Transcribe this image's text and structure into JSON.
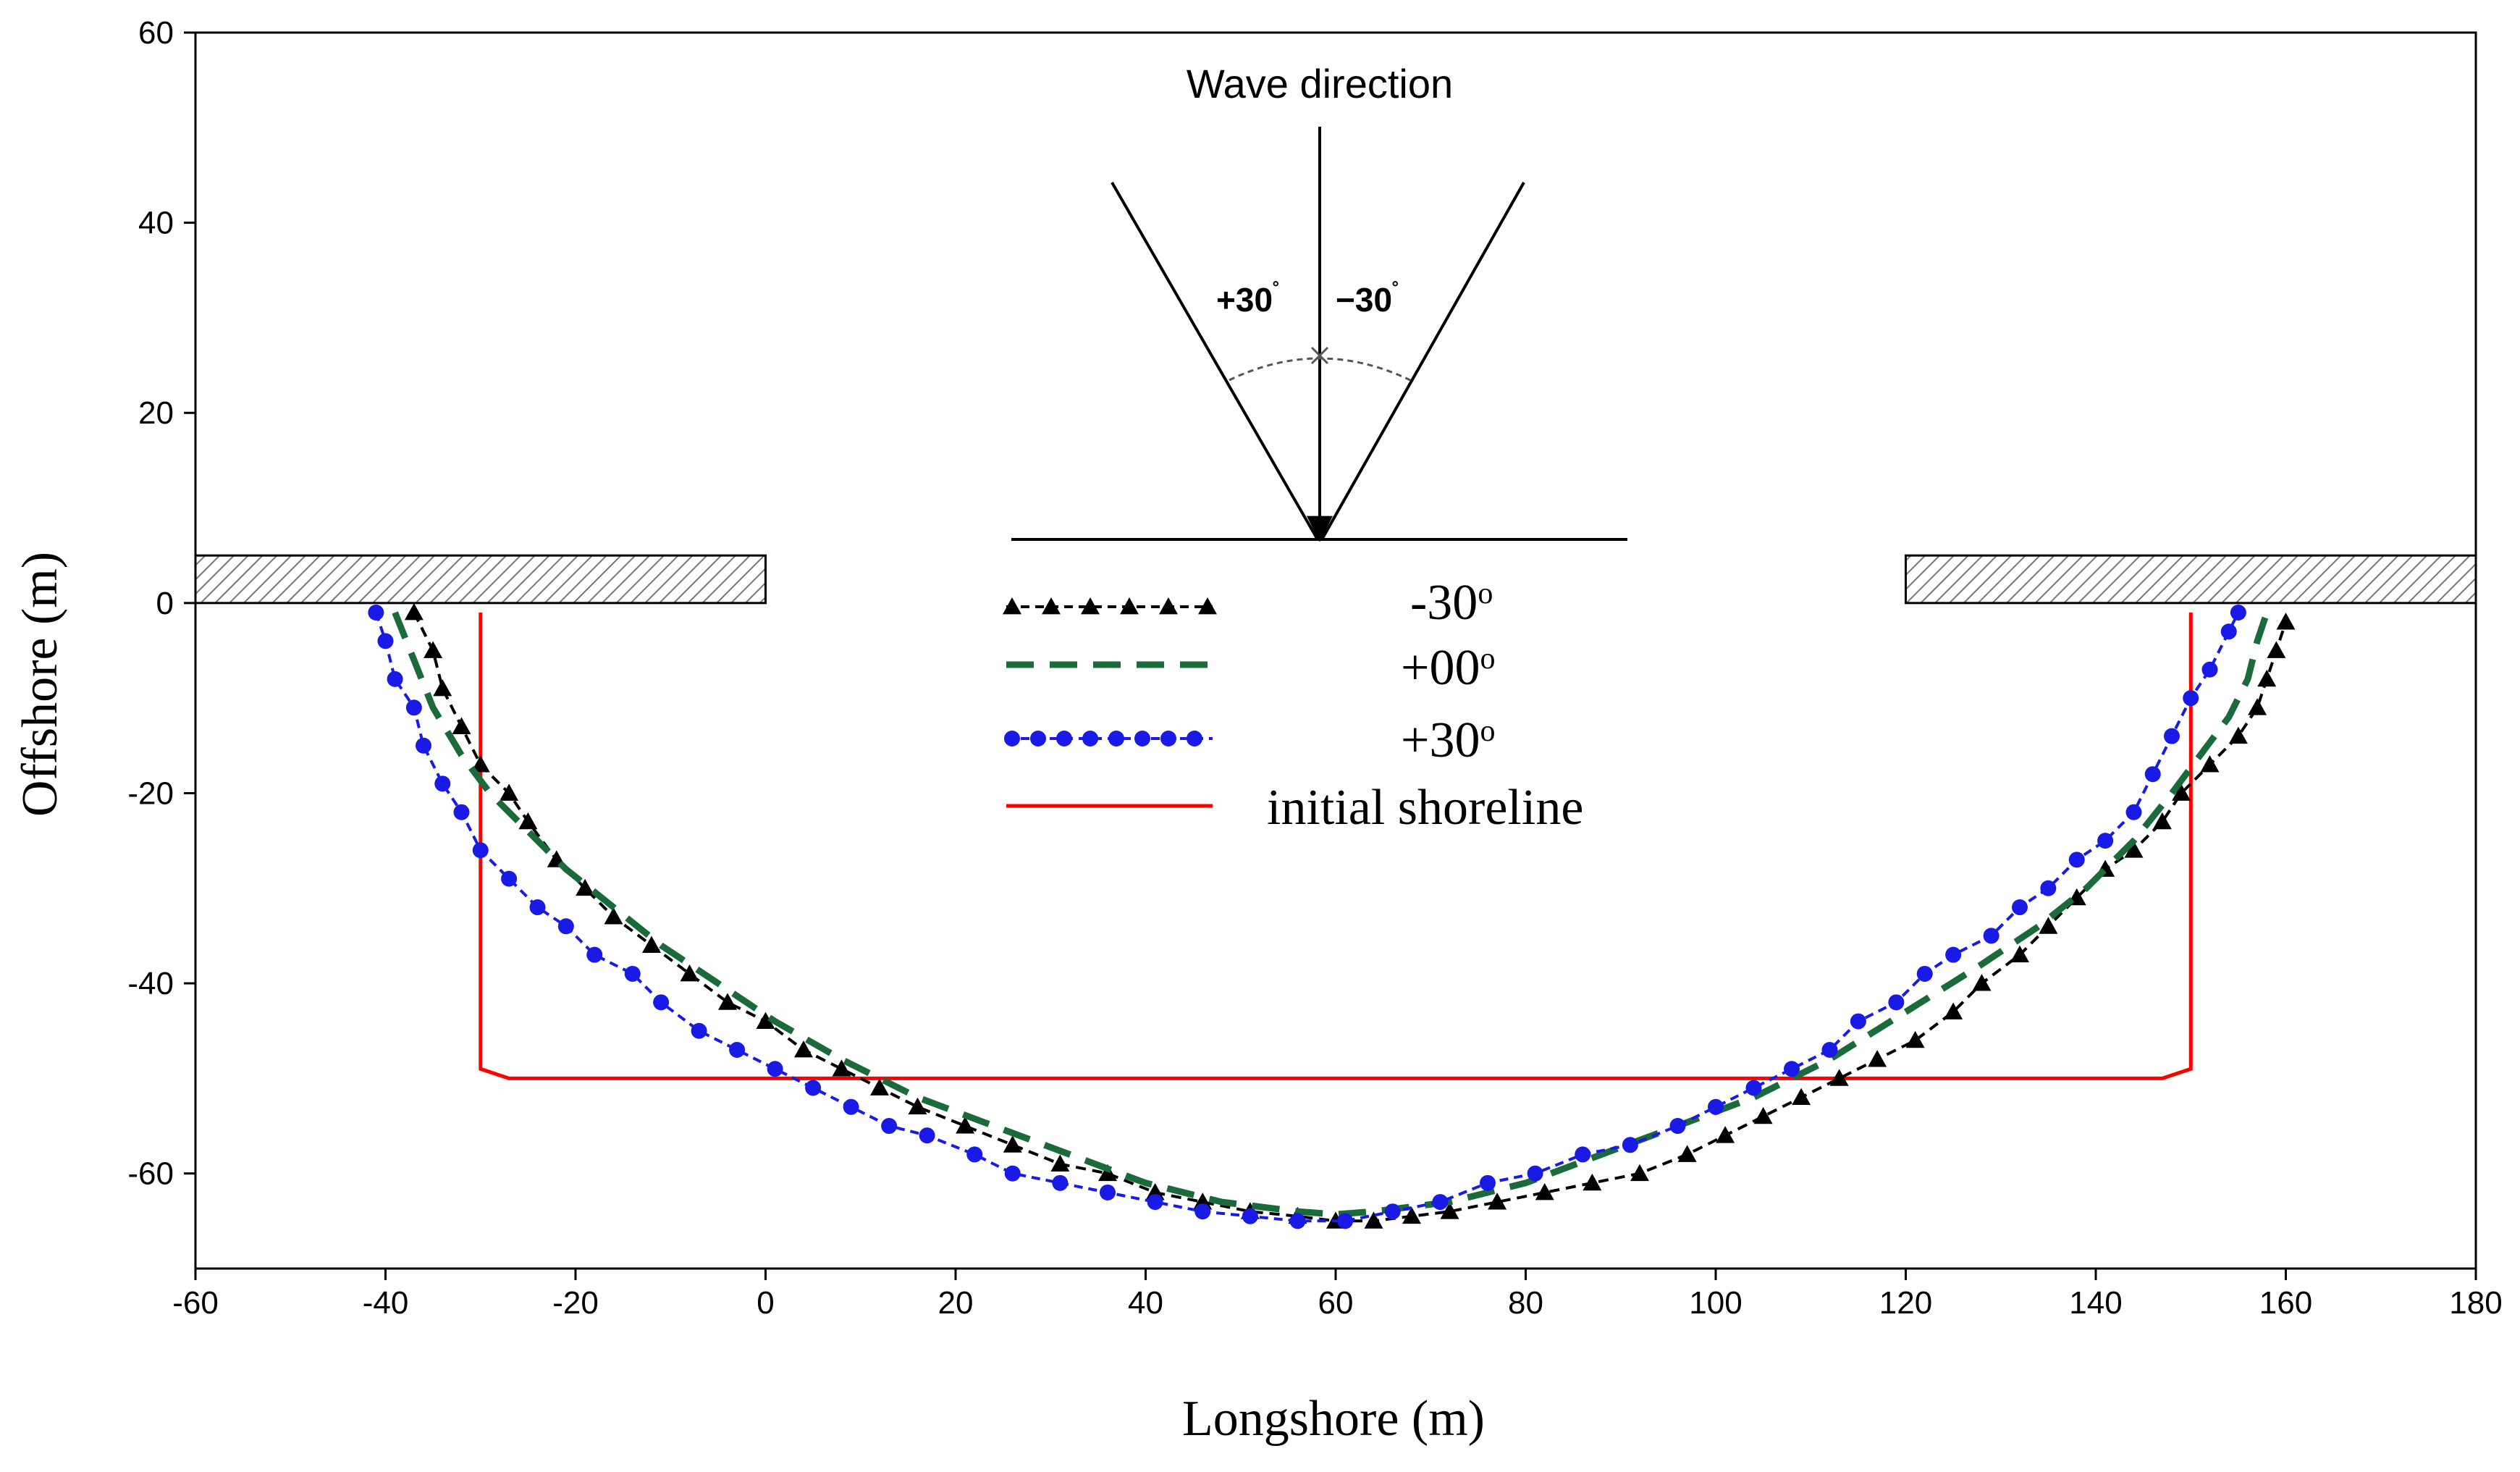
{
  "chart_data": {
    "type": "line",
    "title": "",
    "xlabel": "Longshore (m)",
    "ylabel": "Offshore (m)",
    "xlim": [
      -60,
      180
    ],
    "ylim": [
      -70,
      60
    ],
    "x_ticks": [
      -60,
      -40,
      -20,
      0,
      20,
      40,
      60,
      80,
      100,
      120,
      140,
      160,
      180
    ],
    "y_ticks": [
      -60,
      -40,
      -20,
      0,
      20,
      40,
      60
    ],
    "grid": false,
    "legend_placement": "center",
    "series": [
      {
        "name": "-30",
        "legend_label": "-30",
        "legend_sup": "o",
        "color": "#000000",
        "style": "dashed-triangle",
        "points": [
          [
            -37,
            -1
          ],
          [
            -35,
            -5
          ],
          [
            -34,
            -9
          ],
          [
            -32,
            -13
          ],
          [
            -30,
            -17
          ],
          [
            -27,
            -20
          ],
          [
            -25,
            -23
          ],
          [
            -22,
            -27
          ],
          [
            -19,
            -30
          ],
          [
            -16,
            -33
          ],
          [
            -12,
            -36
          ],
          [
            -8,
            -39
          ],
          [
            -4,
            -42
          ],
          [
            0,
            -44
          ],
          [
            4,
            -47
          ],
          [
            8,
            -49
          ],
          [
            12,
            -51
          ],
          [
            16,
            -53
          ],
          [
            21,
            -55
          ],
          [
            26,
            -57
          ],
          [
            31,
            -59
          ],
          [
            36,
            -60
          ],
          [
            41,
            -62
          ],
          [
            46,
            -63
          ],
          [
            51,
            -64
          ],
          [
            56,
            -64.5
          ],
          [
            60,
            -65
          ],
          [
            64,
            -65
          ],
          [
            68,
            -64.5
          ],
          [
            72,
            -64
          ],
          [
            77,
            -63
          ],
          [
            82,
            -62
          ],
          [
            87,
            -61
          ],
          [
            92,
            -60
          ],
          [
            97,
            -58
          ],
          [
            101,
            -56
          ],
          [
            105,
            -54
          ],
          [
            109,
            -52
          ],
          [
            113,
            -50
          ],
          [
            117,
            -48
          ],
          [
            121,
            -46
          ],
          [
            125,
            -43
          ],
          [
            128,
            -40
          ],
          [
            132,
            -37
          ],
          [
            135,
            -34
          ],
          [
            138,
            -31
          ],
          [
            141,
            -28
          ],
          [
            144,
            -26
          ],
          [
            147,
            -23
          ],
          [
            149,
            -20
          ],
          [
            152,
            -17
          ],
          [
            155,
            -14
          ],
          [
            157,
            -11
          ],
          [
            158,
            -8
          ],
          [
            159,
            -5
          ],
          [
            160,
            -2
          ]
        ]
      },
      {
        "name": "+00",
        "legend_label": "+00",
        "legend_sup": "o",
        "color": "#1b6b3a",
        "style": "dashed",
        "points": [
          [
            -39,
            -1
          ],
          [
            -37,
            -6
          ],
          [
            -35,
            -11
          ],
          [
            -32,
            -16
          ],
          [
            -29,
            -20
          ],
          [
            -25,
            -24
          ],
          [
            -21,
            -28
          ],
          [
            -16,
            -32
          ],
          [
            -11,
            -36
          ],
          [
            -5,
            -40
          ],
          [
            1,
            -44
          ],
          [
            8,
            -48
          ],
          [
            16,
            -52
          ],
          [
            24,
            -55
          ],
          [
            32,
            -58
          ],
          [
            40,
            -61
          ],
          [
            48,
            -63
          ],
          [
            56,
            -64
          ],
          [
            60,
            -64.3
          ],
          [
            64,
            -64
          ],
          [
            72,
            -63
          ],
          [
            80,
            -61
          ],
          [
            88,
            -58
          ],
          [
            96,
            -55
          ],
          [
            104,
            -52
          ],
          [
            112,
            -48
          ],
          [
            120,
            -43
          ],
          [
            128,
            -38
          ],
          [
            134,
            -34
          ],
          [
            139,
            -30
          ],
          [
            144,
            -25
          ],
          [
            148,
            -20
          ],
          [
            151,
            -16
          ],
          [
            154,
            -12
          ],
          [
            156,
            -8
          ],
          [
            157,
            -4
          ],
          [
            158,
            -1
          ]
        ]
      },
      {
        "name": "+30",
        "legend_label": "+30",
        "legend_sup": "o",
        "color": "#1a1ae6",
        "style": "dotted-circle",
        "points": [
          [
            -41,
            -1
          ],
          [
            -40,
            -4
          ],
          [
            -39,
            -8
          ],
          [
            -37,
            -11
          ],
          [
            -36,
            -15
          ],
          [
            -34,
            -19
          ],
          [
            -32,
            -22
          ],
          [
            -30,
            -26
          ],
          [
            -27,
            -29
          ],
          [
            -24,
            -32
          ],
          [
            -21,
            -34
          ],
          [
            -18,
            -37
          ],
          [
            -14,
            -39
          ],
          [
            -11,
            -42
          ],
          [
            -7,
            -45
          ],
          [
            -3,
            -47
          ],
          [
            1,
            -49
          ],
          [
            5,
            -51
          ],
          [
            9,
            -53
          ],
          [
            13,
            -55
          ],
          [
            17,
            -56
          ],
          [
            22,
            -58
          ],
          [
            26,
            -60
          ],
          [
            31,
            -61
          ],
          [
            36,
            -62
          ],
          [
            41,
            -63
          ],
          [
            46,
            -64
          ],
          [
            51,
            -64.5
          ],
          [
            56,
            -65
          ],
          [
            61,
            -65
          ],
          [
            66,
            -64
          ],
          [
            71,
            -63
          ],
          [
            76,
            -61
          ],
          [
            81,
            -60
          ],
          [
            86,
            -58
          ],
          [
            91,
            -57
          ],
          [
            96,
            -55
          ],
          [
            100,
            -53
          ],
          [
            104,
            -51
          ],
          [
            108,
            -49
          ],
          [
            112,
            -47
          ],
          [
            115,
            -44
          ],
          [
            119,
            -42
          ],
          [
            122,
            -39
          ],
          [
            125,
            -37
          ],
          [
            129,
            -35
          ],
          [
            132,
            -32
          ],
          [
            135,
            -30
          ],
          [
            138,
            -27
          ],
          [
            141,
            -25
          ],
          [
            144,
            -22
          ],
          [
            146,
            -18
          ],
          [
            148,
            -14
          ],
          [
            150,
            -10
          ],
          [
            152,
            -7
          ],
          [
            154,
            -3
          ],
          [
            155,
            -1
          ]
        ]
      },
      {
        "name": "initial shoreline",
        "legend_label": "initial shoreline",
        "legend_sup": "",
        "color": "#ff0000",
        "style": "solid",
        "points": [
          [
            -30,
            -1
          ],
          [
            -30,
            -49
          ],
          [
            -27,
            -50
          ],
          [
            147,
            -50
          ],
          [
            150,
            -49
          ],
          [
            150,
            -1
          ]
        ]
      }
    ],
    "structures": [
      {
        "name": "left-breakwater",
        "x0": -60,
        "x1": 0,
        "y0": 0,
        "y1": 5
      },
      {
        "name": "right-breakwater",
        "x0": 120,
        "x1": 180,
        "y0": 0,
        "y1": 5
      }
    ],
    "annotation": {
      "title": "Wave direction",
      "plus_label": "+30",
      "minus_label": "−30",
      "degree_mark": "˚"
    }
  }
}
